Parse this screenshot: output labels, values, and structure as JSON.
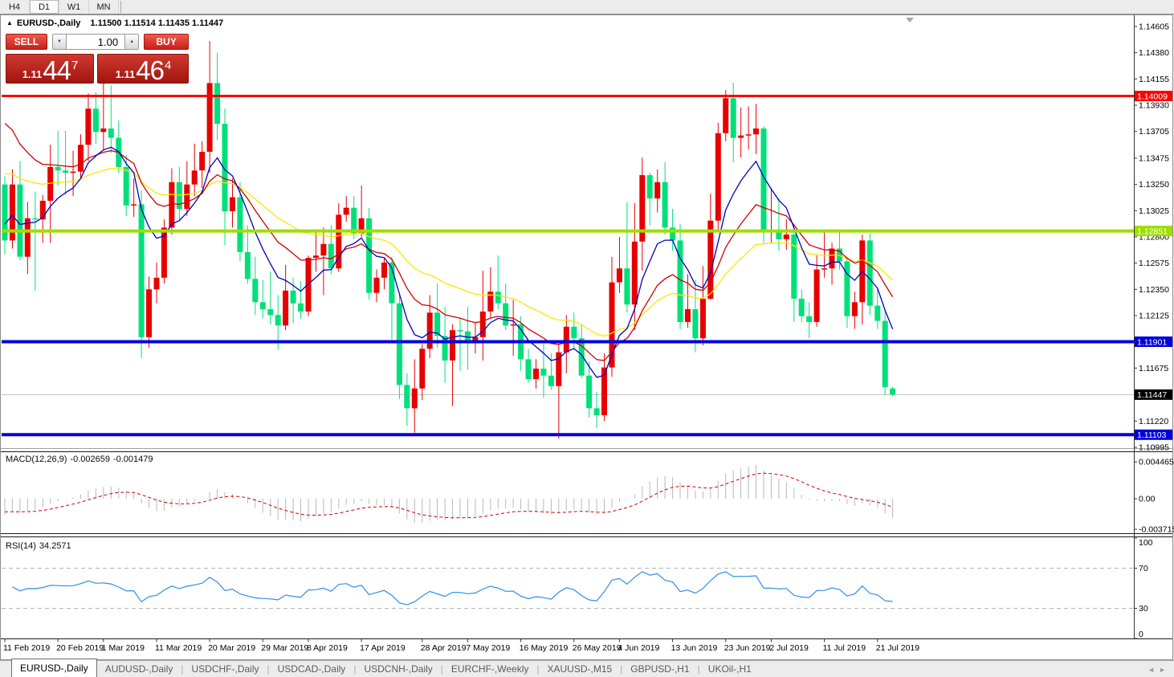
{
  "toolbar": {
    "timeframes": [
      {
        "label": "H4",
        "active": false
      },
      {
        "label": "D1",
        "active": true
      },
      {
        "label": "W1",
        "active": false
      },
      {
        "label": "MN",
        "active": false
      }
    ]
  },
  "chart_header": {
    "symbol": "EURUSD-,Daily",
    "quotes": "1.11500 1.11514 1.11435 1.11447"
  },
  "icons": {
    "collapse": "▲",
    "spin_down": "▼",
    "spin_up": "▲",
    "shift_marker": "▼",
    "tab_prev": "◄",
    "tab_next": "►",
    "tab_separator": "|"
  },
  "trade_panel": {
    "sell_label": "SELL",
    "buy_label": "BUY",
    "volume": "1.00",
    "sell_price": {
      "prefix": "1.11",
      "big": "44",
      "sup": "7"
    },
    "buy_price": {
      "prefix": "1.11",
      "big": "46",
      "sup": "4"
    }
  },
  "indicators": {
    "macd": {
      "label": "MACD(12,26,9)",
      "value1": "-0.002659",
      "value2": "-0.001479",
      "params": [
        12,
        26,
        9
      ]
    },
    "rsi": {
      "label": "RSI(14)",
      "value": "34.2571",
      "period": 14,
      "levels": [
        70,
        30
      ]
    }
  },
  "chart_data": {
    "type": "candlestick",
    "symbol": "EURUSD",
    "timeframe": "Daily",
    "ylim": [
      1.10995,
      1.14605
    ],
    "colors": {
      "up_candle": "#e80000",
      "down_candle": "#00e07a",
      "ma_fast": "#0000c0",
      "ma_medium": "#d00000",
      "ma_slow": "#ffe400",
      "macd_histogram": "#b8b8b8",
      "macd_signal": "#d00000",
      "rsi_line": "#2f8fe8",
      "current_price_line": "#c0c0c0"
    },
    "moving_averages": [
      {
        "name": "slow",
        "period": 34,
        "seed": 1.1338,
        "color": "#ffe400"
      },
      {
        "name": "medium",
        "period": 17,
        "seed": 1.139,
        "color": "#d00000"
      },
      {
        "name": "fast",
        "period": 8,
        "seed": 1.1295,
        "color": "#0000c0"
      }
    ],
    "h_lines": [
      {
        "value": 1.14009,
        "label": "1.14009",
        "color": "#fe0000",
        "width": 3
      },
      {
        "value": 1.12851,
        "label": "1.12851",
        "color": "#9fdd00",
        "width": 4
      },
      {
        "value": 1.11901,
        "label": "1.11901",
        "color": "#0000e0",
        "width": 4
      },
      {
        "value": 1.11103,
        "label": "1.11103",
        "color": "#0000e0",
        "width": 4
      }
    ],
    "current_price": {
      "value": 1.11447,
      "label": "1.11447",
      "badge_color": "#000000"
    },
    "price_axis_ticks": [
      "1.14605",
      "1.14380",
      "1.14155",
      "1.13930",
      "1.13705",
      "1.13475",
      "1.13250",
      "1.13025",
      "1.12800",
      "1.12575",
      "1.12350",
      "1.12125",
      "1.11675",
      "1.11220",
      "1.10995"
    ],
    "macd_axis": [
      "0.004465",
      "0.00",
      "-0.003715"
    ],
    "rsi_axis": [
      {
        "label": "100",
        "v": 100
      },
      {
        "label": "70",
        "v": 70
      },
      {
        "label": "30",
        "v": 30
      },
      {
        "label": "0",
        "v": 0
      }
    ],
    "date_ticks": [
      {
        "label": "11 Feb 2019",
        "i": 0
      },
      {
        "label": "20 Feb 2019",
        "i": 7
      },
      {
        "label": "1 Mar 2019",
        "i": 13
      },
      {
        "label": "11 Mar 2019",
        "i": 20
      },
      {
        "label": "20 Mar 2019",
        "i": 27
      },
      {
        "label": "29 Mar 2019",
        "i": 34
      },
      {
        "label": "8 Apr 2019",
        "i": 40
      },
      {
        "label": "17 Apr 2019",
        "i": 47
      },
      {
        "label": "28 Apr 2019",
        "i": 55
      },
      {
        "label": "7 May 2019",
        "i": 61
      },
      {
        "label": "16 May 2019",
        "i": 68
      },
      {
        "label": "26 May 2019",
        "i": 75
      },
      {
        "label": "4 Jun 2019",
        "i": 81
      },
      {
        "label": "13 Jun 2019",
        "i": 88
      },
      {
        "label": "23 Jun 2019",
        "i": 95
      },
      {
        "label": "2 Jul 2019",
        "i": 101
      },
      {
        "label": "11 Jul 2019",
        "i": 108
      },
      {
        "label": "21 Jul 2019",
        "i": 115
      }
    ],
    "candles": [
      [
        1.1325,
        1.1332,
        1.1265,
        1.1277
      ],
      [
        1.1277,
        1.1338,
        1.127,
        1.1325
      ],
      [
        1.1325,
        1.1345,
        1.126,
        1.1263
      ],
      [
        1.1263,
        1.131,
        1.1248,
        1.1296
      ],
      [
        1.1296,
        1.1319,
        1.1234,
        1.1295
      ],
      [
        1.1295,
        1.1316,
        1.1275,
        1.1311
      ],
      [
        1.1311,
        1.1359,
        1.1275,
        1.134
      ],
      [
        1.134,
        1.1371,
        1.1324,
        1.1337
      ],
      [
        1.1337,
        1.1371,
        1.1316,
        1.1335
      ],
      [
        1.1335,
        1.1354,
        1.1315,
        1.1336
      ],
      [
        1.1336,
        1.1368,
        1.133,
        1.1359
      ],
      [
        1.1359,
        1.1403,
        1.1345,
        1.139
      ],
      [
        1.139,
        1.1404,
        1.136,
        1.137
      ],
      [
        1.137,
        1.142,
        1.1355,
        1.1373
      ],
      [
        1.1373,
        1.141,
        1.1352,
        1.1365
      ],
      [
        1.1365,
        1.138,
        1.1335,
        1.134
      ],
      [
        1.134,
        1.135,
        1.1298,
        1.1307
      ],
      [
        1.1307,
        1.133,
        1.1297,
        1.1308
      ],
      [
        1.1308,
        1.132,
        1.1176,
        1.1194
      ],
      [
        1.1194,
        1.1246,
        1.1185,
        1.1235
      ],
      [
        1.1235,
        1.1258,
        1.1223,
        1.1245
      ],
      [
        1.1245,
        1.1295,
        1.124,
        1.1288
      ],
      [
        1.1288,
        1.1339,
        1.1282,
        1.1327
      ],
      [
        1.1327,
        1.134,
        1.1294,
        1.1304
      ],
      [
        1.1304,
        1.1345,
        1.1298,
        1.1325
      ],
      [
        1.1325,
        1.136,
        1.1315,
        1.1337
      ],
      [
        1.1337,
        1.1362,
        1.1322,
        1.1353
      ],
      [
        1.1353,
        1.1448,
        1.1335,
        1.1412
      ],
      [
        1.1412,
        1.1438,
        1.1363,
        1.1377
      ],
      [
        1.1377,
        1.139,
        1.1273,
        1.1302
      ],
      [
        1.1302,
        1.133,
        1.1288,
        1.1314
      ],
      [
        1.1314,
        1.1327,
        1.1259,
        1.1267
      ],
      [
        1.1267,
        1.129,
        1.124,
        1.1244
      ],
      [
        1.1244,
        1.1263,
        1.1213,
        1.1224
      ],
      [
        1.1224,
        1.1243,
        1.121,
        1.1218
      ],
      [
        1.1218,
        1.125,
        1.1205,
        1.1213
      ],
      [
        1.1213,
        1.123,
        1.1183,
        1.1204
      ],
      [
        1.1204,
        1.1256,
        1.12,
        1.1234
      ],
      [
        1.1234,
        1.1245,
        1.1206,
        1.1223
      ],
      [
        1.1223,
        1.1242,
        1.121,
        1.1216
      ],
      [
        1.1216,
        1.1264,
        1.1212,
        1.1262
      ],
      [
        1.1262,
        1.1285,
        1.125,
        1.1264
      ],
      [
        1.1264,
        1.1288,
        1.123,
        1.1274
      ],
      [
        1.1274,
        1.129,
        1.1248,
        1.1253
      ],
      [
        1.1253,
        1.1309,
        1.125,
        1.1299
      ],
      [
        1.1299,
        1.1315,
        1.1293,
        1.1305
      ],
      [
        1.1305,
        1.1315,
        1.1278,
        1.1283
      ],
      [
        1.1283,
        1.1324,
        1.128,
        1.1296
      ],
      [
        1.1296,
        1.1305,
        1.1226,
        1.1232
      ],
      [
        1.1232,
        1.1252,
        1.1224,
        1.1245
      ],
      [
        1.1245,
        1.1262,
        1.1235,
        1.1258
      ],
      [
        1.1258,
        1.1263,
        1.1192,
        1.1223
      ],
      [
        1.1223,
        1.123,
        1.1141,
        1.1153
      ],
      [
        1.1153,
        1.1163,
        1.1118,
        1.1133
      ],
      [
        1.1133,
        1.1175,
        1.1112,
        1.115
      ],
      [
        1.115,
        1.1188,
        1.114,
        1.1184
      ],
      [
        1.1184,
        1.123,
        1.1176,
        1.1215
      ],
      [
        1.1215,
        1.124,
        1.1185,
        1.1195
      ],
      [
        1.1195,
        1.122,
        1.1155,
        1.1174
      ],
      [
        1.1174,
        1.1205,
        1.1135,
        1.12
      ],
      [
        1.12,
        1.121,
        1.1165,
        1.1199
      ],
      [
        1.1199,
        1.122,
        1.1166,
        1.119
      ],
      [
        1.119,
        1.1207,
        1.118,
        1.1194
      ],
      [
        1.1194,
        1.1251,
        1.1174,
        1.1216
      ],
      [
        1.1216,
        1.1254,
        1.121,
        1.1233
      ],
      [
        1.1233,
        1.1264,
        1.1218,
        1.1223
      ],
      [
        1.1223,
        1.124,
        1.12,
        1.1204
      ],
      [
        1.1204,
        1.1226,
        1.1178,
        1.1205
      ],
      [
        1.1205,
        1.1212,
        1.1165,
        1.1175
      ],
      [
        1.1175,
        1.1184,
        1.1155,
        1.1158
      ],
      [
        1.1158,
        1.1175,
        1.115,
        1.1167
      ],
      [
        1.1167,
        1.1188,
        1.1142,
        1.1161
      ],
      [
        1.1161,
        1.118,
        1.1149,
        1.1152
      ],
      [
        1.1152,
        1.1188,
        1.1107,
        1.1181
      ],
      [
        1.1181,
        1.1213,
        1.1163,
        1.1203
      ],
      [
        1.1203,
        1.1215,
        1.1184,
        1.1193
      ],
      [
        1.1193,
        1.1205,
        1.1159,
        1.1161
      ],
      [
        1.1161,
        1.1173,
        1.1125,
        1.1133
      ],
      [
        1.1133,
        1.1147,
        1.1116,
        1.1127
      ],
      [
        1.1127,
        1.118,
        1.1122,
        1.1168
      ],
      [
        1.1168,
        1.1263,
        1.116,
        1.1241
      ],
      [
        1.1241,
        1.128,
        1.1232,
        1.1253
      ],
      [
        1.1253,
        1.131,
        1.1215,
        1.1222
      ],
      [
        1.1222,
        1.1309,
        1.12,
        1.1276
      ],
      [
        1.1276,
        1.1348,
        1.1251,
        1.1333
      ],
      [
        1.1333,
        1.1335,
        1.129,
        1.1313
      ],
      [
        1.1313,
        1.1338,
        1.1301,
        1.1327
      ],
      [
        1.1327,
        1.1344,
        1.1282,
        1.1288
      ],
      [
        1.1288,
        1.1304,
        1.1268,
        1.1277
      ],
      [
        1.1277,
        1.1291,
        1.1201,
        1.1207
      ],
      [
        1.1207,
        1.1248,
        1.1202,
        1.1218
      ],
      [
        1.1218,
        1.1243,
        1.1181,
        1.1193
      ],
      [
        1.1193,
        1.1255,
        1.1187,
        1.1227
      ],
      [
        1.1227,
        1.1317,
        1.1226,
        1.1294
      ],
      [
        1.1294,
        1.1378,
        1.1285,
        1.1369
      ],
      [
        1.1369,
        1.1406,
        1.1362,
        1.1399
      ],
      [
        1.1399,
        1.1412,
        1.1344,
        1.1365
      ],
      [
        1.1365,
        1.1391,
        1.1348,
        1.1367
      ],
      [
        1.1367,
        1.1392,
        1.1355,
        1.1368
      ],
      [
        1.1368,
        1.1394,
        1.1351,
        1.1373
      ],
      [
        1.1373,
        1.1375,
        1.1275,
        1.1284
      ],
      [
        1.1284,
        1.1322,
        1.1275,
        1.1285
      ],
      [
        1.1285,
        1.1313,
        1.1268,
        1.1278
      ],
      [
        1.1278,
        1.1295,
        1.1269,
        1.1282
      ],
      [
        1.1282,
        1.1288,
        1.1207,
        1.1227
      ],
      [
        1.1227,
        1.1235,
        1.1207,
        1.1212
      ],
      [
        1.1212,
        1.1224,
        1.1193,
        1.1207
      ],
      [
        1.1207,
        1.1264,
        1.1203,
        1.1252
      ],
      [
        1.1252,
        1.1286,
        1.1245,
        1.1253
      ],
      [
        1.1253,
        1.1275,
        1.1239,
        1.127
      ],
      [
        1.127,
        1.1284,
        1.1252,
        1.1259
      ],
      [
        1.1259,
        1.1263,
        1.1202,
        1.1212
      ],
      [
        1.1212,
        1.1233,
        1.1201,
        1.1224
      ],
      [
        1.1224,
        1.1282,
        1.1205,
        1.1277
      ],
      [
        1.1277,
        1.1283,
        1.1213,
        1.1221
      ],
      [
        1.1221,
        1.1236,
        1.1201,
        1.1208
      ],
      [
        1.1208,
        1.1218,
        1.1144,
        1.1151
      ],
      [
        1.115,
        1.11514,
        1.11435,
        1.11447
      ]
    ]
  },
  "bottom_tabs": {
    "tabs": [
      {
        "label": "EURUSD-,Daily",
        "active": true
      },
      {
        "label": "AUDUSD-,Daily",
        "active": false
      },
      {
        "label": "USDCHF-,Daily",
        "active": false
      },
      {
        "label": "USDCAD-,Daily",
        "active": false
      },
      {
        "label": "USDCNH-,Daily",
        "active": false
      },
      {
        "label": "EURCHF-,Weekly",
        "active": false
      },
      {
        "label": "XAUUSD-,M15",
        "active": false
      },
      {
        "label": "GBPUSD-,H1",
        "active": false
      },
      {
        "label": "UKOil-,H1",
        "active": false
      }
    ]
  }
}
